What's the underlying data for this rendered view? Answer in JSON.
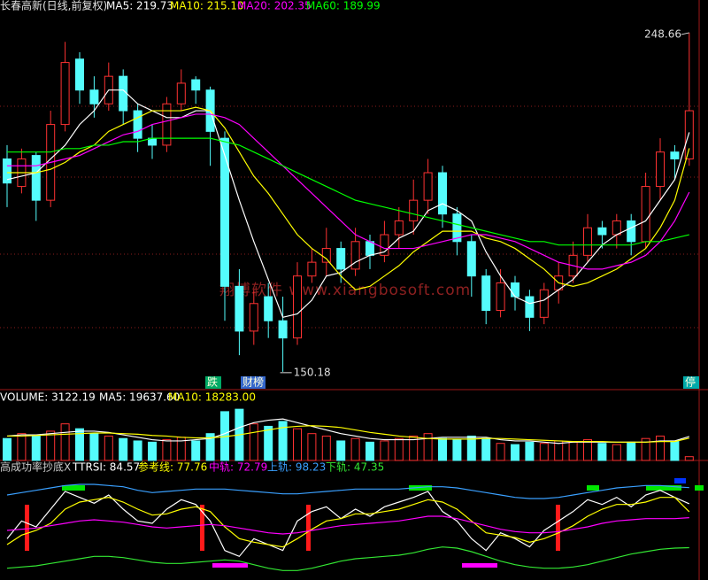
{
  "chart_data": [
    {
      "type": "candlestick",
      "title": "长春高新(日线,前复权)",
      "watermark": "翔博软件 www.xiangbosoft.com",
      "categories": [
        null,
        null,
        null,
        null,
        null,
        null,
        null,
        null,
        null,
        null,
        null,
        null,
        null,
        null,
        null,
        null,
        null,
        null,
        null,
        null,
        null,
        null,
        null,
        null,
        null,
        null,
        null,
        null,
        null,
        null,
        null,
        null,
        null,
        null,
        null,
        null,
        null,
        null,
        null,
        null,
        null,
        null,
        null,
        null,
        null,
        null,
        null,
        null
      ],
      "open": [
        212,
        204,
        213,
        200,
        222,
        241,
        232,
        228,
        236,
        226,
        218,
        216,
        228,
        235,
        232,
        218,
        175,
        162,
        172,
        165,
        160,
        178,
        182,
        186,
        180,
        188,
        184,
        190,
        194,
        200,
        208,
        196,
        188,
        178,
        168,
        176,
        172,
        166,
        174,
        178,
        184,
        192,
        190,
        194,
        188,
        204,
        214,
        212
      ],
      "high": [
        216,
        215,
        214,
        226,
        246,
        243,
        236,
        240,
        238,
        228,
        222,
        230,
        238,
        236,
        233,
        220,
        180,
        174,
        176,
        172,
        182,
        186,
        192,
        188,
        192,
        190,
        194,
        198,
        206,
        212,
        210,
        198,
        190,
        180,
        180,
        178,
        174,
        176,
        182,
        188,
        196,
        194,
        196,
        196,
        208,
        218,
        216,
        248.66
      ],
      "low": [
        198,
        202,
        194,
        198,
        220,
        228,
        224,
        226,
        222,
        214,
        212,
        214,
        226,
        228,
        210,
        165,
        155,
        158,
        160,
        150.18,
        158,
        176,
        178,
        176,
        178,
        180,
        182,
        186,
        190,
        196,
        192,
        184,
        172,
        164,
        166,
        168,
        162,
        164,
        170,
        176,
        182,
        186,
        186,
        184,
        186,
        200,
        206,
        210
      ],
      "close": [
        205,
        212,
        200,
        222,
        240,
        232,
        228,
        236,
        226,
        218,
        216,
        228,
        234,
        232,
        220,
        175,
        162,
        170,
        165,
        160,
        178,
        182,
        186,
        180,
        188,
        184,
        190,
        194,
        200,
        208,
        196,
        188,
        178,
        168,
        176,
        172,
        166,
        174,
        178,
        184,
        192,
        190,
        194,
        188,
        204,
        214,
        212,
        226
      ],
      "up_color": "#ff3232",
      "down_color": "#54fcfc",
      "ylim": [
        145,
        252.5
      ],
      "series": [
        {
          "name": "MA5: 219.73",
          "color": "#ffffff",
          "values": [
            206,
            207,
            208,
            212,
            216,
            222,
            226,
            232,
            232,
            228,
            226,
            224,
            224,
            226,
            226,
            213,
            200,
            188,
            177,
            166,
            167,
            171,
            178,
            179,
            182,
            184,
            185,
            189,
            191,
            197,
            199,
            197,
            194,
            185,
            178,
            172,
            170,
            171,
            174,
            177,
            182,
            187,
            190,
            192,
            194,
            200,
            206,
            219.73
          ]
        },
        {
          "name": "MA10: 215.10",
          "color": "#ffff00",
          "values": [
            208,
            208,
            208,
            209,
            211,
            214,
            216,
            220,
            222,
            224,
            226,
            226,
            226,
            227,
            226,
            221,
            214,
            207,
            202,
            196,
            190,
            186,
            183,
            178,
            174,
            175,
            178,
            181,
            185,
            188,
            191,
            191,
            191,
            189,
            188,
            186,
            183,
            180,
            176,
            175,
            176,
            178,
            180,
            183,
            186,
            192,
            200,
            215.1
          ]
        },
        {
          "name": "MA20: 202.35",
          "color": "#ff00ff",
          "values": [
            210,
            210,
            210,
            211,
            212,
            213,
            215,
            217,
            219,
            220,
            222,
            223,
            224,
            225,
            225,
            224,
            222,
            218,
            214,
            210,
            206,
            202,
            198,
            194,
            190,
            188,
            186,
            186,
            186,
            187,
            188,
            189,
            190,
            190,
            189,
            188,
            186,
            184,
            182,
            181,
            180,
            180,
            181,
            182,
            184,
            188,
            194,
            202.35
          ]
        },
        {
          "name": "MA60: 189.99",
          "color": "#00ff00",
          "values": [
            214,
            214,
            214,
            214,
            215,
            215,
            216,
            216,
            217,
            217,
            218,
            218,
            218,
            218,
            218,
            217,
            216,
            214,
            212,
            210,
            208,
            206,
            204,
            202,
            200,
            199,
            198,
            197,
            196,
            195,
            194,
            193,
            192,
            191,
            190,
            189,
            188,
            188,
            187,
            187,
            187,
            187,
            187,
            187,
            188,
            188,
            189,
            189.99
          ]
        }
      ],
      "annotations": [
        "248.66",
        "150.18",
        "跌",
        "财榜",
        "停"
      ]
    },
    {
      "type": "bar",
      "series": [
        {
          "name": "VOLUME: 3122.19",
          "color": "#ffffff",
          "values": [
            18000,
            22000,
            20000,
            24000,
            30000,
            26000,
            22000,
            20000,
            18000,
            16000,
            15000,
            17000,
            19000,
            16000,
            22000,
            40000,
            42000,
            30000,
            28000,
            32000,
            26000,
            22000,
            20000,
            16000,
            18000,
            15000,
            16000,
            18000,
            20000,
            22000,
            18000,
            17000,
            20000,
            18000,
            14000,
            13000,
            15000,
            14000,
            16000,
            15000,
            17000,
            14000,
            13000,
            15000,
            18000,
            20000,
            16000,
            3122.19
          ]
        },
        {
          "name": "MA5: 19637.60",
          "color": "#ffffff",
          "values": [
            20000,
            21000,
            21000,
            22000,
            23000,
            24000,
            24000,
            23000,
            21000,
            19000,
            17000,
            16000,
            16000,
            17000,
            18000,
            22000,
            27000,
            31000,
            33000,
            34000,
            31000,
            28000,
            25000,
            22000,
            20000,
            18000,
            17000,
            17000,
            17000,
            18000,
            19000,
            19000,
            19000,
            19000,
            17000,
            16000,
            16000,
            15000,
            14000,
            15000,
            15000,
            15000,
            15000,
            15000,
            15000,
            16000,
            16000,
            19637.6
          ]
        },
        {
          "name": "MA10: 18283.00",
          "color": "#ffff00",
          "values": [
            20000,
            20000,
            20500,
            21000,
            21500,
            22000,
            22500,
            22500,
            22000,
            21500,
            20500,
            20000,
            19000,
            18500,
            18500,
            19500,
            21000,
            23000,
            25000,
            27000,
            28000,
            28500,
            28000,
            27000,
            25000,
            23000,
            21500,
            20000,
            19000,
            18000,
            17500,
            17500,
            17500,
            18000,
            18000,
            17500,
            17000,
            16500,
            16000,
            15500,
            15500,
            15500,
            15000,
            15000,
            15000,
            15500,
            15500,
            18283.0
          ]
        }
      ],
      "ylim": [
        0,
        45000
      ]
    },
    {
      "type": "line",
      "title": "高成功率抄底X",
      "series": [
        {
          "name": "TTRSI: 84.57",
          "color": "#ffffff",
          "values": [
            55,
            70,
            65,
            80,
            95,
            90,
            85,
            92,
            80,
            70,
            68,
            80,
            88,
            84,
            70,
            45,
            40,
            55,
            50,
            45,
            70,
            78,
            82,
            72,
            80,
            74,
            82,
            86,
            90,
            95,
            78,
            70,
            55,
            45,
            60,
            55,
            48,
            62,
            70,
            78,
            88,
            84,
            90,
            82,
            92,
            96,
            90,
            84.57
          ]
        },
        {
          "name": "参考线: 77.76",
          "color": "#ffff00",
          "values": [
            50,
            58,
            62,
            68,
            80,
            86,
            88,
            90,
            86,
            80,
            75,
            76,
            80,
            82,
            78,
            65,
            55,
            52,
            50,
            48,
            55,
            63,
            70,
            72,
            76,
            76,
            78,
            80,
            84,
            88,
            86,
            80,
            70,
            60,
            58,
            56,
            52,
            55,
            60,
            66,
            74,
            80,
            84,
            84,
            86,
            90,
            90,
            77.76
          ]
        },
        {
          "name": "中轨: 72.79",
          "color": "#ff00ff",
          "values": [
            62,
            63,
            64,
            66,
            68,
            70,
            71,
            70,
            69,
            67,
            65,
            64,
            65,
            66,
            67,
            66,
            64,
            62,
            60,
            59,
            60,
            62,
            64,
            66,
            67,
            68,
            69,
            70,
            72,
            74,
            74,
            72,
            69,
            66,
            63,
            61,
            60,
            60,
            61,
            63,
            65,
            68,
            70,
            71,
            72,
            72,
            72,
            72.79
          ]
        },
        {
          "name": "上轨: 98.23",
          "color": "#3aa0ff",
          "values": [
            92,
            94,
            96,
            98,
            100,
            101,
            101,
            100,
            99,
            96,
            94,
            95,
            96,
            97,
            97,
            97,
            96,
            95,
            94,
            93,
            93,
            94,
            95,
            96,
            97,
            97,
            97,
            97,
            98,
            99,
            99,
            98,
            96,
            94,
            92,
            90,
            89,
            89,
            90,
            92,
            94,
            96,
            98,
            99,
            100,
            100,
            99,
            98.23
          ]
        },
        {
          "name": "下轨: 47.35",
          "color": "#33e633",
          "values": [
            30,
            31,
            32,
            34,
            36,
            38,
            40,
            40,
            39,
            37,
            35,
            34,
            34,
            35,
            36,
            37,
            36,
            33,
            30,
            28,
            28,
            30,
            33,
            36,
            38,
            39,
            40,
            41,
            43,
            46,
            48,
            47,
            44,
            40,
            36,
            33,
            31,
            30,
            30,
            31,
            33,
            36,
            39,
            42,
            44,
            46,
            47,
            47.35
          ]
        }
      ],
      "ylim": [
        20,
        110
      ]
    }
  ]
}
